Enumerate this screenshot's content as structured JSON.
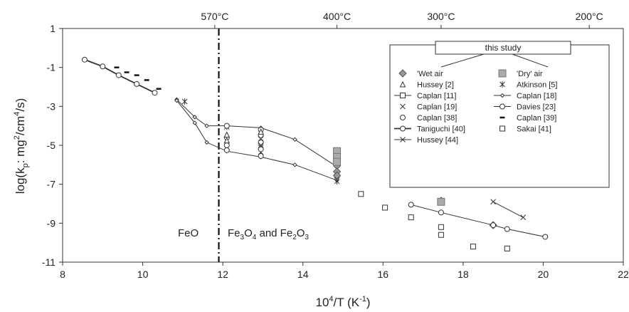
{
  "chart_data": {
    "type": "scatter",
    "xlabel_base": "10",
    "xlabel_sup": "4",
    "xlabel_mid": "/T (K",
    "xlabel_sup2": "-1",
    "xlabel_end": ")",
    "ylabel_pre": "log(k",
    "ylabel_sub": "p",
    "ylabel_mid": ": mg",
    "ylabel_sup": "2",
    "ylabel_mid2": "/cm",
    "ylabel_sup2": "4",
    "ylabel_end": "/s)",
    "xlim": [
      8,
      22
    ],
    "ylim": [
      -11,
      1
    ],
    "xticks": [
      8,
      10,
      12,
      14,
      16,
      18,
      20,
      22
    ],
    "yticks": [
      1,
      -1,
      -3,
      -5,
      -7,
      -9,
      -11
    ],
    "top_axis": [
      {
        "label": "570°C",
        "x": 11.8
      },
      {
        "label": "400°C",
        "x": 14.85
      },
      {
        "label": "300°C",
        "x": 17.45
      },
      {
        "label": "200°C",
        "x": 21.15
      }
    ],
    "phase_boundary_x": 11.9,
    "region_labels": {
      "feo": "FeO",
      "fe3o4_a": "Fe",
      "fe3o4_a_sub": "3",
      "fe3o4_b": "O",
      "fe3o4_b_sub": "4",
      "fe3o4_c": " and Fe",
      "fe3o4_c_sub": "2",
      "fe3o4_d": "O",
      "fe3o4_d_sub": "3"
    },
    "legend": {
      "header": "this study",
      "entries": [
        {
          "name": "'Wet air",
          "marker": "diamond-filled"
        },
        {
          "name": "'Dry' air",
          "marker": "square-filled"
        },
        {
          "name": "Hussey [2]",
          "marker": "triangle"
        },
        {
          "name": "Atkinson [5]",
          "marker": "asterisk"
        },
        {
          "name": "Caplan [11]",
          "marker": "square-line"
        },
        {
          "name": "Caplan [18]",
          "marker": "diamond-line"
        },
        {
          "name": "Caplan [19]",
          "marker": "x"
        },
        {
          "name": "Davies [23]",
          "marker": "circle-line"
        },
        {
          "name": "Caplan [38]",
          "marker": "circle"
        },
        {
          "name": "Caplan [39]",
          "marker": "dash"
        },
        {
          "name": "Taniguchi [40]",
          "marker": "circle-line-thick"
        },
        {
          "name": "Sakai [41]",
          "marker": "square"
        },
        {
          "name": "Hussey [44]",
          "marker": "x-line"
        }
      ]
    },
    "series": [
      {
        "name": "Taniguchi [40]",
        "marker": "circle-line-thick",
        "points": [
          [
            8.55,
            -0.6
          ],
          [
            9.0,
            -0.95
          ],
          [
            9.4,
            -1.4
          ],
          [
            9.85,
            -1.85
          ],
          [
            10.3,
            -2.3
          ]
        ]
      },
      {
        "name": "Caplan [39]",
        "marker": "dash",
        "points": [
          [
            9.35,
            -1.0
          ],
          [
            9.6,
            -1.25
          ],
          [
            9.85,
            -1.4
          ],
          [
            10.1,
            -1.65
          ],
          [
            10.4,
            -2.1
          ]
        ]
      },
      {
        "name": "Caplan [18]",
        "marker": "diamond-line",
        "points": [
          [
            10.85,
            -2.65
          ],
          [
            11.3,
            -3.55
          ],
          [
            11.6,
            -4.0
          ],
          [
            12.1,
            -4.0
          ],
          [
            12.95,
            -4.1
          ],
          [
            13.8,
            -4.7
          ],
          [
            14.85,
            -6.1
          ]
        ]
      },
      {
        "name": "Caplan [18] lower",
        "marker": "diamond-line",
        "points": [
          [
            10.85,
            -2.7
          ],
          [
            11.3,
            -3.85
          ],
          [
            11.6,
            -4.85
          ],
          [
            12.1,
            -5.3
          ],
          [
            12.95,
            -5.6
          ],
          [
            13.8,
            -6.0
          ],
          [
            14.85,
            -6.8
          ]
        ]
      },
      {
        "name": "Atkinson [5]",
        "marker": "asterisk",
        "points": [
          [
            11.05,
            -2.75
          ],
          [
            12.1,
            -4.05
          ],
          [
            12.95,
            -5.1
          ],
          [
            12.95,
            -5.35
          ],
          [
            14.85,
            -6.45
          ],
          [
            14.85,
            -6.85
          ]
        ]
      },
      {
        "name": "Caplan [38]",
        "marker": "circle",
        "points": [
          [
            12.1,
            -4.0
          ],
          [
            12.1,
            -4.6
          ],
          [
            12.1,
            -5.0
          ],
          [
            12.1,
            -5.25
          ],
          [
            12.95,
            -4.2
          ],
          [
            12.95,
            -4.5
          ],
          [
            12.95,
            -4.85
          ],
          [
            12.95,
            -5.2
          ],
          [
            12.95,
            -5.55
          ],
          [
            14.85,
            -6.6
          ]
        ]
      },
      {
        "name": "Hussey [2]",
        "marker": "triangle",
        "points": [
          [
            12.1,
            -4.45
          ],
          [
            12.1,
            -4.75
          ],
          [
            12.95,
            -4.3
          ]
        ]
      },
      {
        "name": "Caplan [19]",
        "marker": "x",
        "points": [
          [
            12.95,
            -4.65
          ],
          [
            12.95,
            -5.0
          ],
          [
            14.85,
            -6.5
          ]
        ]
      },
      {
        "name": "'Wet air",
        "marker": "diamond-filled",
        "points": [
          [
            14.85,
            -6.05
          ],
          [
            14.85,
            -6.35
          ],
          [
            14.85,
            -6.55
          ],
          [
            17.45,
            -7.85
          ],
          [
            18.75,
            -9.1
          ]
        ]
      },
      {
        "name": "'Dry' air",
        "marker": "square-filled",
        "points": [
          [
            14.85,
            -5.3
          ],
          [
            14.85,
            -5.6
          ],
          [
            14.85,
            -5.85
          ],
          [
            17.45,
            -7.9
          ]
        ]
      },
      {
        "name": "Davies [23]",
        "marker": "circle-line",
        "points": [
          [
            16.7,
            -8.05
          ],
          [
            17.45,
            -8.45
          ],
          [
            18.75,
            -9.1
          ],
          [
            19.1,
            -9.3
          ],
          [
            20.05,
            -9.7
          ]
        ]
      },
      {
        "name": "Sakai [41]",
        "marker": "square",
        "points": [
          [
            15.45,
            -7.5
          ],
          [
            16.05,
            -8.2
          ],
          [
            16.7,
            -8.7
          ],
          [
            17.45,
            -9.2
          ],
          [
            17.45,
            -9.6
          ],
          [
            18.25,
            -10.2
          ],
          [
            19.1,
            -10.3
          ]
        ]
      },
      {
        "name": "Hussey [44]",
        "marker": "x-line",
        "points": [
          [
            18.75,
            -7.9
          ],
          [
            19.5,
            -8.7
          ]
        ]
      }
    ]
  }
}
